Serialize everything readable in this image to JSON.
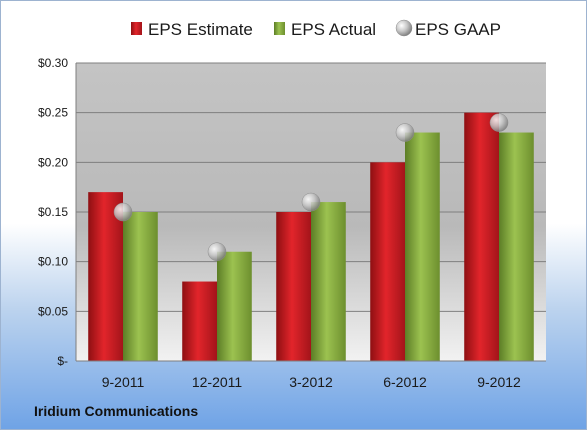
{
  "company": "Iridium Communications",
  "chart_data": {
    "type": "bar",
    "categories": [
      "9-2011",
      "12-2011",
      "3-2012",
      "6-2012",
      "9-2012"
    ],
    "series": [
      {
        "name": "EPS Estimate",
        "type": "bar",
        "color": "#c9181e",
        "values": [
          0.17,
          0.08,
          0.15,
          0.2,
          0.25
        ]
      },
      {
        "name": "EPS Actual",
        "type": "bar",
        "color": "#7ea33a",
        "values": [
          0.15,
          0.11,
          0.16,
          0.23,
          0.23
        ]
      },
      {
        "name": "EPS GAAP",
        "type": "scatter",
        "color": "#b8b8b8",
        "values": [
          0.15,
          0.11,
          0.16,
          0.23,
          0.24
        ]
      }
    ],
    "ylim": [
      0,
      0.3
    ],
    "yticks": [
      0,
      0.05,
      0.1,
      0.15,
      0.2,
      0.25,
      0.3
    ],
    "ytick_labels": [
      "$-",
      "$0.05",
      "$0.10",
      "$0.15",
      "$0.20",
      "$0.25",
      "$0.30"
    ],
    "grid": true,
    "legend_position": "top"
  }
}
